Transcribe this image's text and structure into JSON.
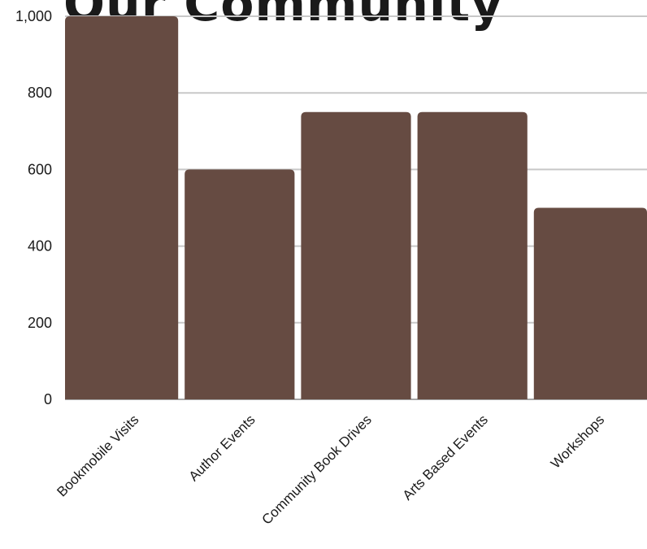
{
  "chart_data": {
    "type": "bar",
    "title": "Our Community",
    "categories": [
      "Bookmobile Visits",
      "Author Events",
      "Community Book Drives",
      "Arts Based Events",
      "Workshops"
    ],
    "values": [
      1000,
      600,
      750,
      750,
      500
    ],
    "xlabel": "",
    "ylabel": "",
    "ylim": [
      0,
      1000
    ],
    "yticks": [
      0,
      200,
      400,
      600,
      800,
      1000
    ],
    "ytick_labels": [
      "0",
      "200",
      "400",
      "600",
      "800",
      "1,000"
    ],
    "grid": true,
    "legend": "none"
  },
  "colors": {
    "bar": "#664b42",
    "grid": "#c8c8c8",
    "axis_text": "#1a1a1a",
    "title": "#1a1a1a"
  }
}
